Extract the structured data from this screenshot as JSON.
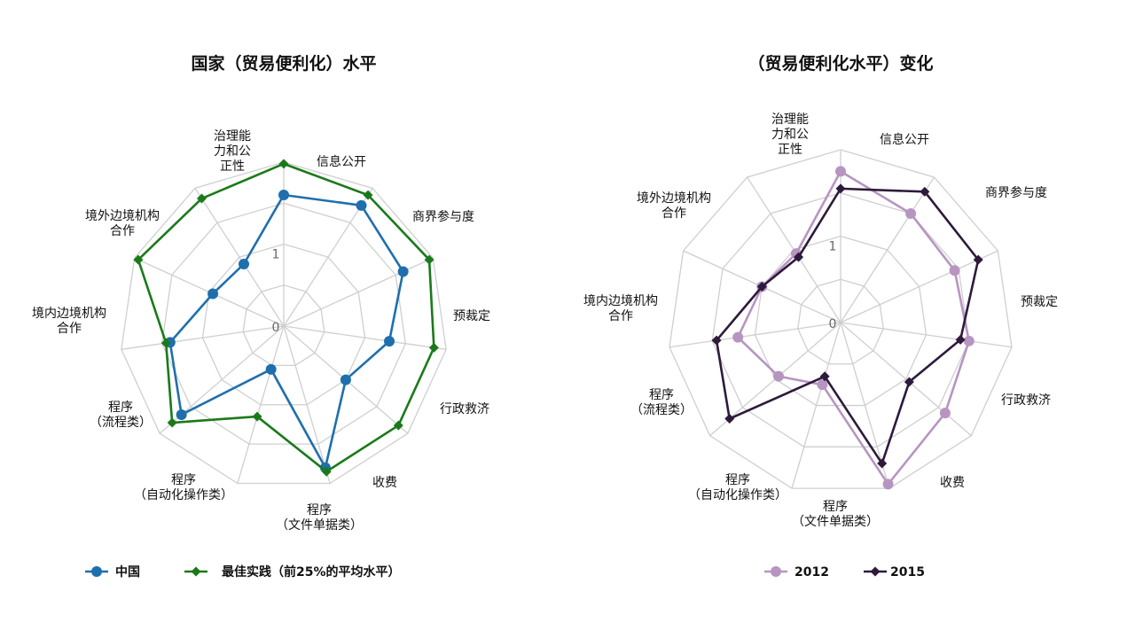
{
  "chart_data": [
    {
      "type": "radar",
      "title": "国家（贸易便利化）水平",
      "axes": [
        "治理能\n力和公\n正性",
        "信息公开",
        "商界参与度",
        "预裁定",
        "行政救济",
        "收费",
        "程序\n（文件单据类）",
        "程序\n（自动化操作类）",
        "程序\n（流程类）",
        "境内边境机构\n合作",
        "境外边境机构\n合作"
      ],
      "range": [
        0,
        2
      ],
      "ticks": [
        {
          "value": 0,
          "label": "0"
        },
        {
          "value": 1,
          "label": "1"
        }
      ],
      "legend_position": "bottom",
      "series": [
        {
          "name": "中国",
          "color": "#1f6fad",
          "marker": "circle",
          "values": [
            1.6,
            1.75,
            1.6,
            1.3,
            1.0,
            1.8,
            0.55,
            1.65,
            1.4,
            0.95,
            0.9
          ]
        },
        {
          "name": "最佳实践（前25%的平均水平）",
          "color": "#1a7a1a",
          "marker": "diamond",
          "values": [
            1.98,
            1.9,
            1.95,
            1.85,
            1.85,
            1.85,
            1.15,
            1.8,
            1.45,
            1.95,
            1.85
          ]
        }
      ]
    },
    {
      "type": "radar",
      "title": "（贸易便利化水平）变化",
      "axes": [
        "治理能\n力和公\n正性",
        "信息公开",
        "商界参与度",
        "预裁定",
        "行政救济",
        "收费",
        "程序\n（文件单据类）",
        "程序\n（自动化操作类）",
        "程序\n（流程类）",
        "境内边境机构\n合作",
        "境外边境机构\n合作"
      ],
      "range": [
        0,
        2
      ],
      "ticks": [
        {
          "value": 0,
          "label": "0"
        },
        {
          "value": 1,
          "label": "1"
        }
      ],
      "legend_position": "bottom",
      "series": [
        {
          "name": "2012",
          "color": "#b795c1",
          "marker": "circle",
          "values": [
            1.75,
            1.5,
            1.45,
            1.5,
            1.6,
            1.95,
            0.75,
            0.95,
            1.2,
            1.0,
            0.95
          ]
        },
        {
          "name": "2015",
          "color": "#2e1a3a",
          "marker": "diamond",
          "values": [
            1.55,
            1.8,
            1.75,
            1.4,
            1.05,
            1.7,
            0.65,
            1.7,
            1.45,
            1.0,
            0.9
          ]
        }
      ]
    }
  ]
}
